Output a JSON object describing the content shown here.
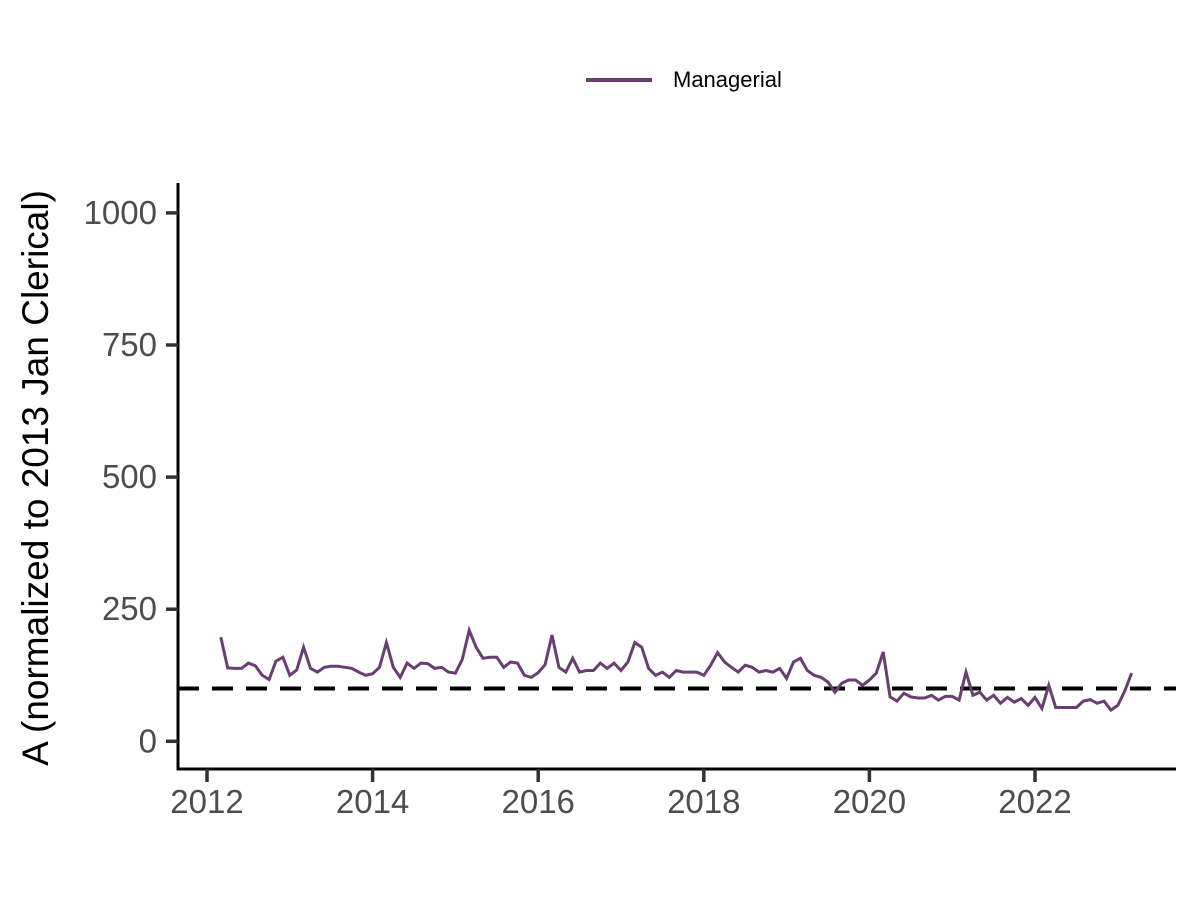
{
  "chart_data": {
    "type": "line",
    "title": "",
    "xlabel": "",
    "ylabel": "A (normalized to 2013 Jan Clerical)",
    "legend_position": "top",
    "grid": false,
    "x_ticks": [
      2012,
      2014,
      2016,
      2018,
      2020,
      2022
    ],
    "y_ticks": [
      0,
      250,
      500,
      750,
      1000
    ],
    "xlim": [
      2011.65,
      2023.7
    ],
    "ylim": [
      0,
      1050
    ],
    "reference_line": {
      "y": 100,
      "linetype": "dashed",
      "color": "#000000"
    },
    "series": [
      {
        "name": "Managerial",
        "color": "#6a3d73",
        "frequency": "monthly",
        "start_year": 2012,
        "start_month": 3,
        "values": [
          197,
          139,
          138,
          138,
          148,
          143,
          125,
          117,
          152,
          159,
          125,
          135,
          178,
          138,
          131,
          140,
          142,
          142,
          140,
          138,
          131,
          125,
          128,
          140,
          187,
          140,
          121,
          148,
          138,
          148,
          147,
          138,
          140,
          131,
          129,
          155,
          210,
          178,
          157,
          159,
          159,
          140,
          150,
          148,
          125,
          121,
          130,
          145,
          201,
          140,
          131,
          157,
          131,
          134,
          134,
          148,
          138,
          148,
          134,
          150,
          187,
          178,
          138,
          125,
          131,
          121,
          134,
          131,
          131,
          131,
          125,
          144,
          168,
          150,
          140,
          131,
          144,
          140,
          131,
          134,
          131,
          138,
          119,
          150,
          157,
          134,
          125,
          121,
          112,
          93,
          110,
          116,
          116,
          106,
          116,
          129,
          169,
          84,
          76,
          91,
          84,
          82,
          82,
          87,
          78,
          85,
          85,
          78,
          131,
          87,
          93,
          78,
          87,
          72,
          83,
          74,
          81,
          68,
          83,
          62,
          106,
          64,
          64,
          64,
          64,
          76,
          79,
          72,
          76,
          59,
          68,
          95,
          129
        ]
      }
    ]
  },
  "colors": {
    "series_purple": "#6a3d73",
    "reference_black": "#000000",
    "axis_line": "#000000",
    "tick_mark": "#333333",
    "axis_text": "#4d4d4d",
    "background": "#ffffff"
  }
}
